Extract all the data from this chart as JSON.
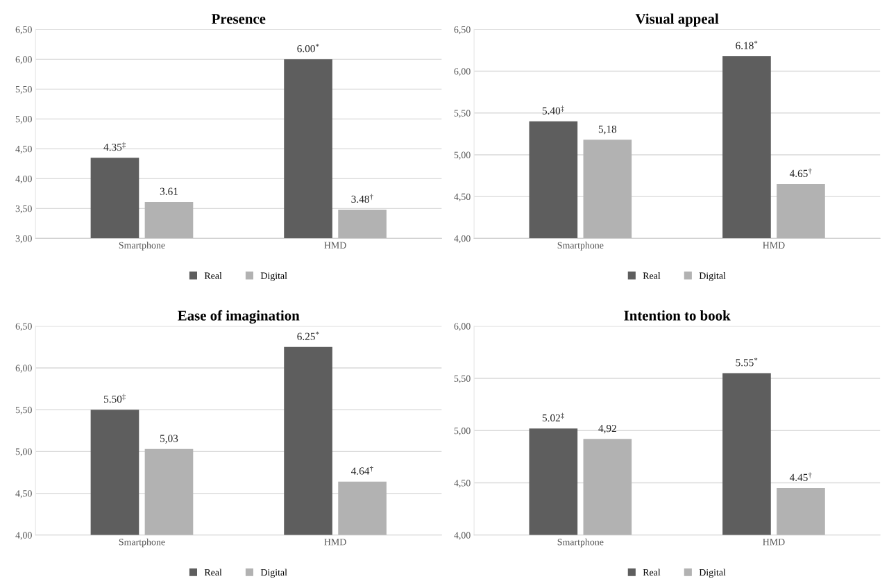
{
  "chart_data": [
    {
      "type": "bar",
      "title": "Presence",
      "categories": [
        "Smartphone",
        "HMD"
      ],
      "series": [
        {
          "name": "Real",
          "color": "#5e5e5e",
          "values": [
            4.35,
            6.0
          ],
          "value_labels": [
            "4.35$^{‡}$",
            "6.00$^{*}$"
          ]
        },
        {
          "name": "Digital",
          "color": "#b2b2b2",
          "values": [
            3.61,
            3.48
          ],
          "value_labels": [
            "3.61",
            "3.48$^{†}$"
          ]
        }
      ],
      "ylim": [
        3.0,
        6.5
      ],
      "yticks": [
        {
          "value": 3.0,
          "label": "3,00"
        },
        {
          "value": 3.5,
          "label": "3,50"
        },
        {
          "value": 4.0,
          "label": "4,00"
        },
        {
          "value": 4.5,
          "label": "4,50"
        },
        {
          "value": 5.0,
          "label": "5,00"
        },
        {
          "value": 5.5,
          "label": "5,50"
        },
        {
          "value": 6.0,
          "label": "6,00"
        },
        {
          "value": 6.5,
          "label": "6,50"
        }
      ],
      "grid": "y",
      "legend": "bottom"
    },
    {
      "type": "bar",
      "title": "Visual appeal",
      "categories": [
        "Smartphone",
        "HMD"
      ],
      "series": [
        {
          "name": "Real",
          "color": "#5e5e5e",
          "values": [
            5.4,
            6.18
          ],
          "value_labels": [
            "5.40$^{‡}$",
            "6.18$^{*}$"
          ]
        },
        {
          "name": "Digital",
          "color": "#b2b2b2",
          "values": [
            5.18,
            4.65
          ],
          "value_labels": [
            "5,18",
            "4.65$^{†}$"
          ]
        }
      ],
      "ylim": [
        4.0,
        6.5
      ],
      "yticks": [
        {
          "value": 4.0,
          "label": "4,00"
        },
        {
          "value": 4.5,
          "label": "4,50"
        },
        {
          "value": 5.0,
          "label": "5,00"
        },
        {
          "value": 5.5,
          "label": "5,50"
        },
        {
          "value": 6.0,
          "label": "6,00"
        },
        {
          "value": 6.5,
          "label": "6,50"
        }
      ],
      "grid": "y",
      "legend": "bottom"
    },
    {
      "type": "bar",
      "title": "Ease of imagination",
      "categories": [
        "Smartphone",
        "HMD"
      ],
      "series": [
        {
          "name": "Real",
          "color": "#5e5e5e",
          "values": [
            5.5,
            6.25
          ],
          "value_labels": [
            "5.50$^{‡}$",
            "6.25$^{*}$"
          ]
        },
        {
          "name": "Digital",
          "color": "#b2b2b2",
          "values": [
            5.03,
            4.64
          ],
          "value_labels": [
            "5,03",
            "4.64$^{†}$"
          ]
        }
      ],
      "ylim": [
        4.0,
        6.5
      ],
      "yticks": [
        {
          "value": 4.0,
          "label": "4,00"
        },
        {
          "value": 4.5,
          "label": "4,50"
        },
        {
          "value": 5.0,
          "label": "5,00"
        },
        {
          "value": 5.5,
          "label": "5,50"
        },
        {
          "value": 6.0,
          "label": "6,00"
        },
        {
          "value": 6.5,
          "label": "6,50"
        }
      ],
      "grid": "y",
      "legend": "bottom"
    },
    {
      "type": "bar",
      "title": "Intention to book",
      "categories": [
        "Smartphone",
        "HMD"
      ],
      "series": [
        {
          "name": "Real",
          "color": "#5e5e5e",
          "values": [
            5.02,
            5.55
          ],
          "value_labels": [
            "5.02$^{‡}$",
            "5.55$^{*}$"
          ]
        },
        {
          "name": "Digital",
          "color": "#b2b2b2",
          "values": [
            4.92,
            4.45
          ],
          "value_labels": [
            "4,92",
            "4.45$^{†}$"
          ]
        }
      ],
      "ylim": [
        4.0,
        6.0
      ],
      "yticks": [
        {
          "value": 4.0,
          "label": "4,00"
        },
        {
          "value": 4.5,
          "label": "4,50"
        },
        {
          "value": 5.0,
          "label": "5,00"
        },
        {
          "value": 5.5,
          "label": "5,50"
        },
        {
          "value": 6.0,
          "label": "6,00"
        }
      ],
      "grid": "y",
      "legend": "bottom"
    }
  ]
}
